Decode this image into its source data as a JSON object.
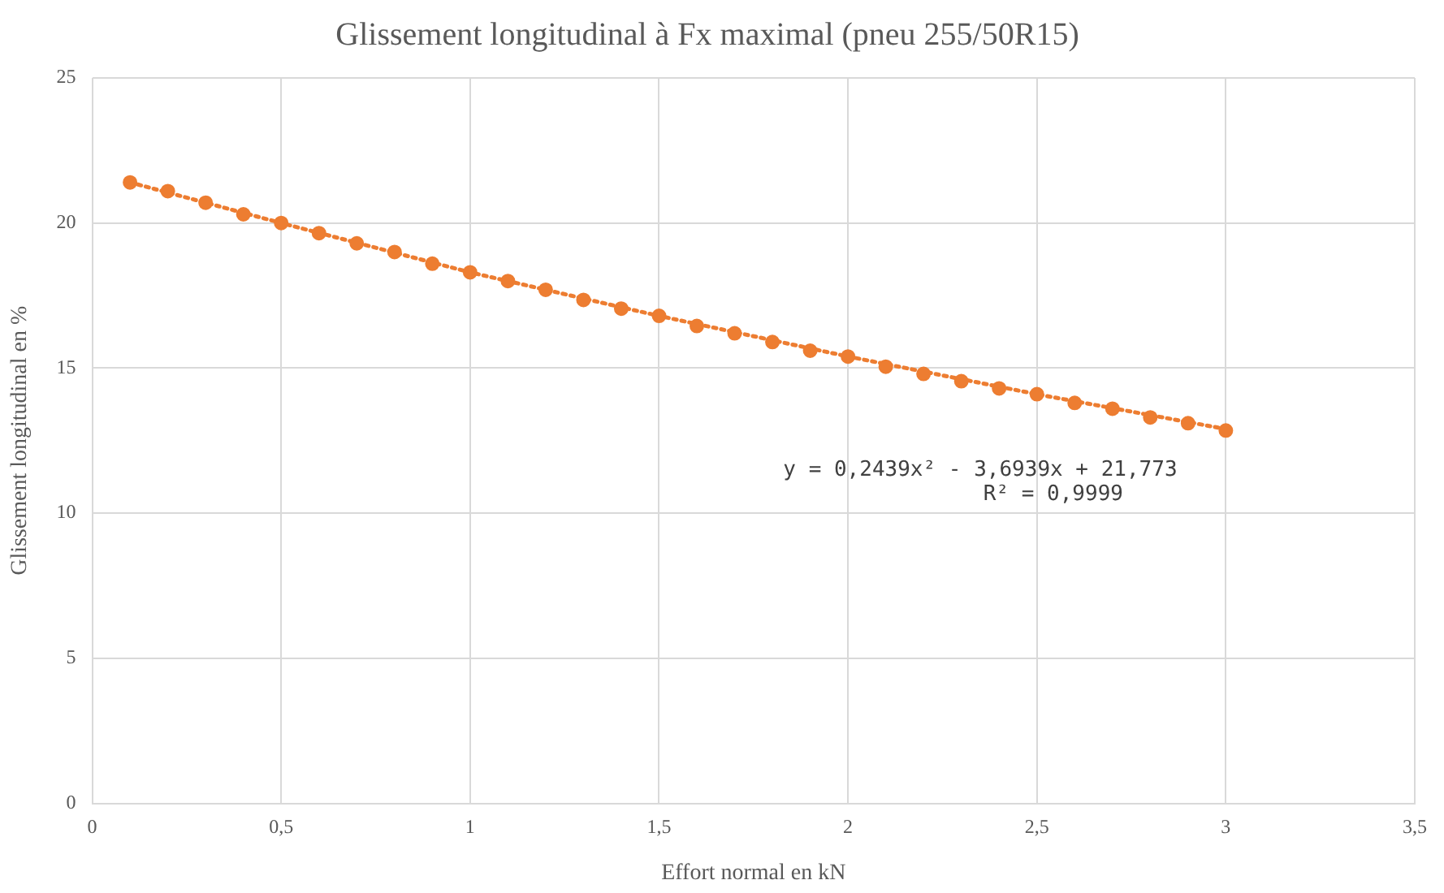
{
  "chart_data": {
    "type": "scatter",
    "title": "Glissement longitudinal à Fx maximal (pneu 255/50R15)",
    "xlabel": "Effort normal en kN",
    "ylabel": "Glissement longitudinal en %",
    "x": [
      0.1,
      0.2,
      0.3,
      0.4,
      0.5,
      0.6,
      0.7,
      0.8,
      0.9,
      1.0,
      1.1,
      1.2,
      1.3,
      1.4,
      1.5,
      1.6,
      1.7,
      1.8,
      1.9,
      2.0,
      2.1,
      2.2,
      2.3,
      2.4,
      2.5,
      2.6,
      2.7,
      2.8,
      2.9,
      3.0
    ],
    "series": [
      {
        "type": "scatter",
        "color": "#ed7d31",
        "marker": "circle",
        "values": [
          21.4,
          21.1,
          20.7,
          20.3,
          20.0,
          19.65,
          19.3,
          19.0,
          18.6,
          18.3,
          18.0,
          17.7,
          17.35,
          17.05,
          16.8,
          16.45,
          16.2,
          15.9,
          15.6,
          15.4,
          15.05,
          14.8,
          14.55,
          14.3,
          14.1,
          13.8,
          13.6,
          13.3,
          13.1,
          12.85
        ]
      },
      {
        "type": "line",
        "color": "#ed7d31",
        "marker": "none",
        "line_style": "dotted",
        "x": [
          0.1,
          0.5,
          1.0,
          1.5,
          2.0,
          2.5,
          3.0
        ],
        "values": [
          21.4,
          20.0,
          18.3,
          16.8,
          15.4,
          14.1,
          12.9
        ]
      }
    ],
    "xlim": [
      0,
      3.5
    ],
    "xticks": [
      0,
      {
        "value": 0.5,
        "label": "0,5"
      },
      1,
      {
        "value": 1.5,
        "label": "1,5"
      },
      2,
      {
        "value": 2.5,
        "label": "2,5"
      },
      3,
      {
        "value": 3.5,
        "label": "3,5"
      }
    ],
    "ylim": [
      0,
      25
    ],
    "yticks": [
      0,
      5,
      10,
      15,
      20,
      25
    ],
    "grid": true,
    "legend": false,
    "annotations": [
      "y = 0,2439x² - 3,6939x + 21,773",
      "R² = 0,9999"
    ]
  }
}
